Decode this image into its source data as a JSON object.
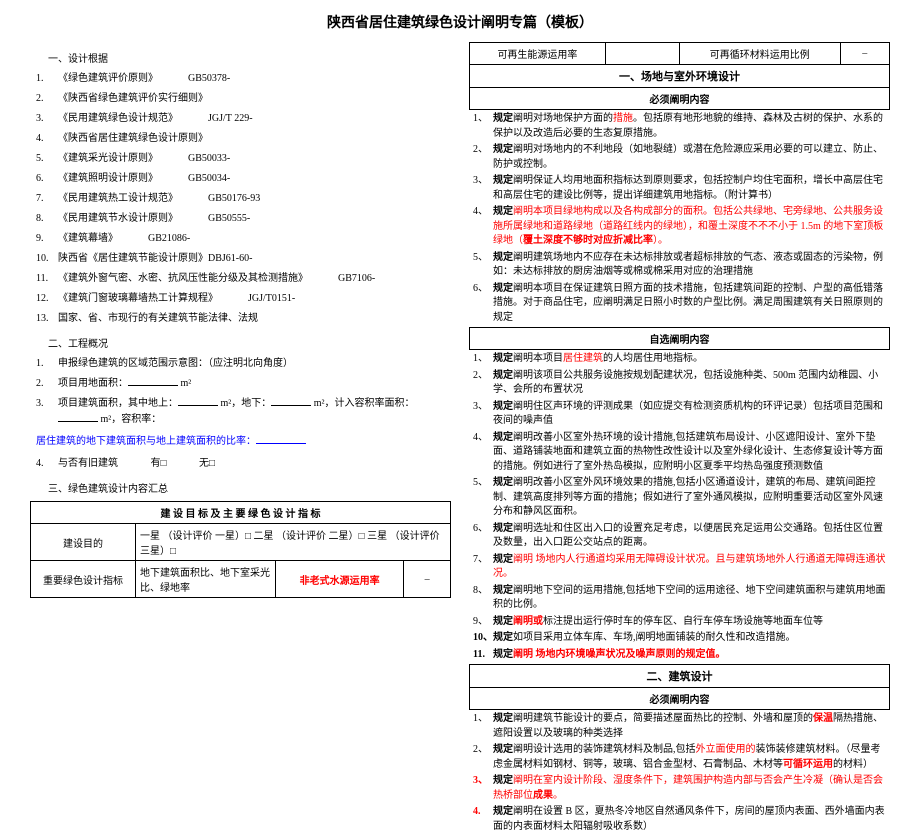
{
  "title": "陕西省居住建筑绿色设计阐明专篇（模板）",
  "left": {
    "s1_head": "一、设计根据",
    "refs": [
      {
        "n": "1.",
        "t": "《绿色建筑评价原则》",
        "c": "GB50378-"
      },
      {
        "n": "2.",
        "t": "《陕西省绿色建筑评价实行细则》",
        "c": ""
      },
      {
        "n": "3.",
        "t": "《民用建筑绿色设计规范》",
        "c": "JGJ/T 229-"
      },
      {
        "n": "4.",
        "t": "《陕西省居住建筑绿色设计原则》",
        "c": ""
      },
      {
        "n": "5.",
        "t": "《建筑采光设计原则》",
        "c": "GB50033-"
      },
      {
        "n": "6.",
        "t": "《建筑照明设计原则》",
        "c": "GB50034-"
      },
      {
        "n": "7.",
        "t": "《民用建筑热工设计规范》",
        "c": "GB50176-93"
      },
      {
        "n": "8.",
        "t": "《民用建筑节水设计原则》",
        "c": "GB50555-"
      },
      {
        "n": "9.",
        "t": "《建筑幕墙》",
        "c": "GB21086-"
      },
      {
        "n": "10.",
        "t": "陕西省《居住建筑节能设计原则》DBJ61-60-",
        "c": ""
      },
      {
        "n": "11.",
        "t": "《建筑外窗气密、水密、抗风压性能分级及其检测措施》",
        "c": "GB7106-"
      },
      {
        "n": "12.",
        "t": "《建筑门窗玻璃幕墙热工计算规程》",
        "c": "JGJ/T0151-"
      },
      {
        "n": "13.",
        "t": "国家、省、市现行的有关建筑节能法律、法规",
        "c": ""
      }
    ],
    "s2_head": "二、工程概况",
    "p1_pre": "申报绿色建筑的区域范围示意图：（应注明北向角度）",
    "p2_pre": "项目用地面积：",
    "p2_unit": "m²",
    "p3_a": "项目建筑面积，其中地上：",
    "p3_b": "m²，地下：",
    "p3_c": "m²，计入容积率面积：",
    "p3_d": "m²，容积率：",
    "p4": "居住建筑的地下建筑面积与地上建筑面积的比率：",
    "p5_a": "与否有旧建筑",
    "p5_b": "有□",
    "p5_c": "无□",
    "s3_head": "三、绿色建筑设计内容汇总",
    "tbl_head": "建 设 目 标 及 主 要 绿 色 设 计 指 标",
    "row1_l": "建设目的",
    "row1_r": "一星 （设计评价 一星）□  二星 （设计评价 二星）□  三星 （设计评价 三星）□",
    "row2_l": "重要绿色设计指标",
    "row2_a": "地下建筑面积比、地下室采光比、绿地率",
    "row2_b": "非老式水源运用率",
    "row2_c": "–"
  },
  "right": {
    "top_a": "可再生能源运用率",
    "top_b": "可再循环材料运用比例",
    "top_c": "–",
    "sec1": "一、场地与室外环境设计",
    "must": "必须阐明内容",
    "opt": "自选阐明内容",
    "m": [
      "阐明对场地保护方面的<R>措施</R>。包括原有地形地貌的维持、森林及古树的保护、水系的保护以及改造后必要的生态复原措施。",
      "阐明对场地内的不利地段（如地裂缝）或潜在危险源应采用必要的可以建立、防止、防护或控制。",
      "阐明保证人均用地面积指标达到原则要求，包括控制户均住宅面积，增长中高层住宅和高层住宅的建设比例等，提出详细建筑用地指标。（附计算书）",
      "<R>阐明本项目绿地构成以及各构成部分的面积。包括公共绿地、宅旁绿地、公共服务设施所属绿地和道路绿地（道路红线内的绿地），和覆土深度不不不小于 1.5m 的地下室顶板绿地（</R><RB>覆土深度不够时对应折减比率</RB><R>）。</R>",
      "阐明建筑场地内不应存在未达标排放或者超标排放的气态、液态或固态的污染物，例如：未达标排放的厨房油烟等或棉或棉采用对应的治理措施",
      "阐明本项目在保证建筑日照方面的技术措施，包括建筑间距的控制、户型的高低错落措施。对于商品住宅，应阐明满足日照小时数的户型比例。满足周围建筑有关日照原则的规定",
      ""
    ],
    "o": [
      "阐明本项目<R>居住建筑</R>的人均居住用地指标。",
      "阐明该项目公共服务设施按规划配建状况，包括设施种类、500m 范围内幼稚园、小学、会所的布置状况",
      "阐明住区声环境的评测成果（如应提交有检测资质机构的环评记录）包括项目范围和夜间的噪声值",
      "阐明改善小区室外热环境的设计措施,包括建筑布局设计、小区遮阳设计、室外下垫面、道路铺装地面和建筑立面的热物性改性设计以及室外绿化设计、生态修复设计等方面的措施。例如进行了室外热岛模拟，应附明小区夏季平均热岛强度预测数值",
      "阐明改善小区室外风环境效果的措施,包括小区通道设计，建筑的布局、建筑间距控制、建筑高度排列等方面的措施；假如进行了室外通风模拟，应附明重要活动区室外风速分布和静风区面积。",
      "阐明选址和住区出入口的设置充足考虑，以便居民充足运用公交通路。包括住区位置及数量，出入口距公交站点的距离。",
      "<R>阐明 场地内人行通道均采用无障碍设计状况。且与建筑场地外人行通道无障碍连通状况。</R>",
      "阐明地下空间的运用措施,包括地下空间的运用途径、地下空间建筑面积与建筑用地面积的比例。",
      "<RB>阐明或</RB>标注提出运行停时车的停车区、自行车停车场设施等地面车位等",
      "如项目采用立体车库、车场,阐明地面铺装的耐久性和改造措施。",
      "<RB>阐明  场地内环境噪声状况及噪声原则的规定值。</RB>"
    ],
    "sec2": "二、建筑设计",
    "m2": [
      "阐明建筑节能设计的要点，简要描述屋面热比的控制、外墙和屋顶的<RB>保温</RB>隔热措施、遮阳设置以及玻璃的种类选择",
      "阐明设计选用的装饰建筑材料及制品,包括<R>外立面使用的</R>装饰装修建筑材料。（尽量考虑金属材料如钢材、铜等，玻璃、铝合金型材、石膏制品、木材等<RB>可循环运用</RB>的材料）",
      "<R>阐明在室内设计阶段、湿度条件下，建筑围护构造内部与否会产生冷凝（确认是否会热桥部位<RB>成果</RB>。</R>",
      "阐明在设置 B 区，夏热冬冷地区自然通风条件下，房间的屋顶内表面、西外墙面内表面的内表面材料太阳辐射吸收系数）"
    ]
  }
}
